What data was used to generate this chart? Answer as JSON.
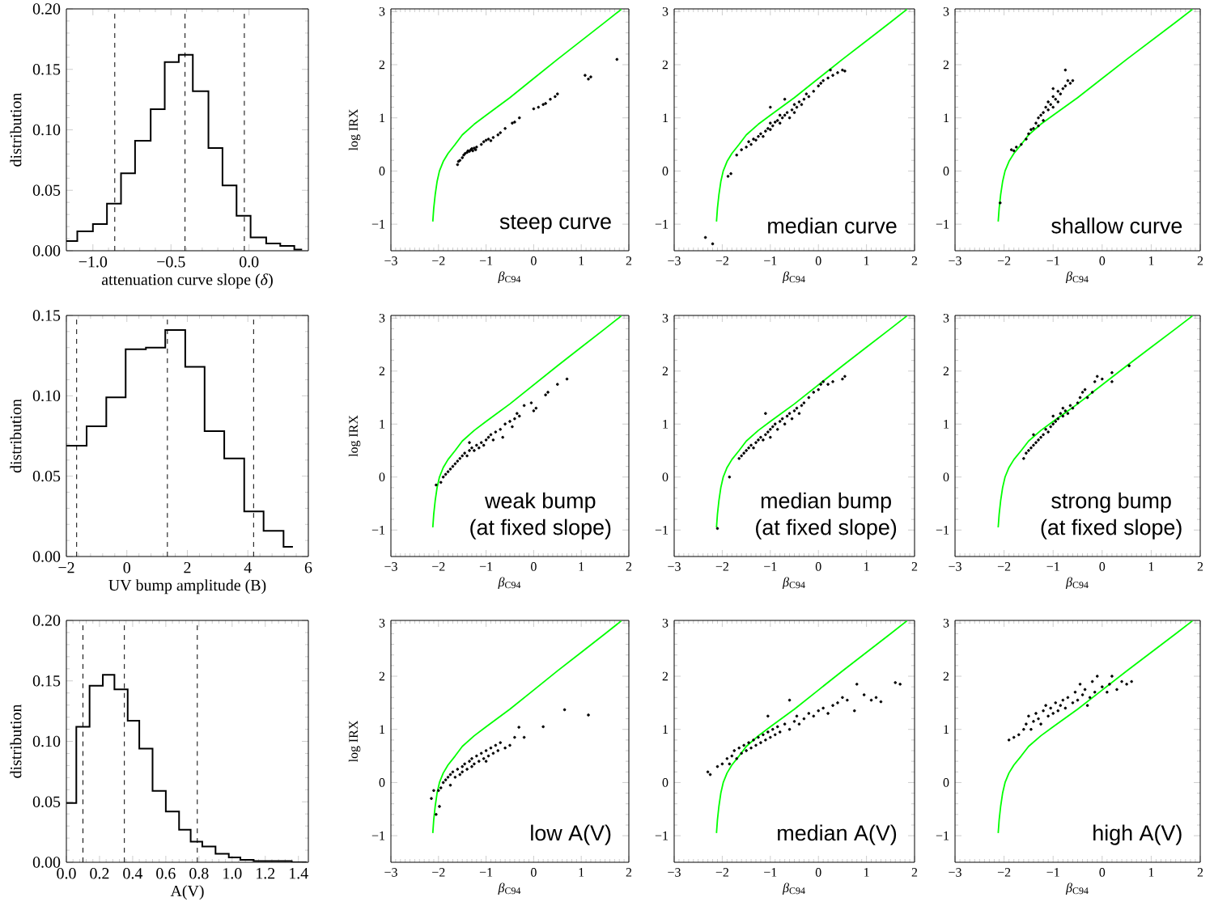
{
  "chart_data": [
    {
      "type": "histogram",
      "xlabel": "attenuation curve slope (*δ*)",
      "ylabel": "distribution",
      "color": "#000000",
      "bins": [
        -1.17,
        -1.1,
        -1.0,
        -0.91,
        -0.82,
        -0.73,
        -0.63,
        -0.54,
        -0.45,
        -0.36,
        -0.26,
        -0.17,
        -0.08,
        0.01,
        0.11,
        0.2,
        0.29,
        0.34
      ],
      "values": [
        0.008,
        0.016,
        0.022,
        0.039,
        0.064,
        0.091,
        0.117,
        0.156,
        0.162,
        0.132,
        0.085,
        0.054,
        0.029,
        0.011,
        0.006,
        0.004,
        0.001
      ],
      "ref_lines": [
        {
          "axis": "x",
          "value": -0.86,
          "line_style": "dashed"
        },
        {
          "axis": "x",
          "value": -0.41,
          "line_style": "dashed"
        },
        {
          "axis": "x",
          "value": -0.03,
          "line_style": "dashed"
        }
      ],
      "xlim": [
        -1.17,
        0.38
      ],
      "ylim": [
        0,
        0.2
      ],
      "xticks": [
        {
          "value": -1.0,
          "label": "−1.0"
        },
        {
          "value": -0.5,
          "label": "−0.5"
        },
        {
          "value": 0,
          "label": "0.0"
        }
      ],
      "yticks": [
        {
          "value": 0,
          "label": "0.00"
        },
        {
          "value": 0.05,
          "label": "0.05"
        },
        {
          "value": 0.1,
          "label": "0.10"
        },
        {
          "value": 0.15,
          "label": "0.15"
        },
        {
          "value": 0.2,
          "label": "0.20"
        }
      ]
    },
    {
      "type": "scatter",
      "xlabel": "*β*$_{C94}$",
      "ylabel": "log  IRX",
      "annotations": [
        "steep curve"
      ],
      "xlim": [
        -3,
        2
      ],
      "ylim": [
        -1.5,
        3.05
      ],
      "xticks": [
        {
          "value": -3,
          "label": "−3"
        },
        {
          "value": -2,
          "label": "−2"
        },
        {
          "value": -1,
          "label": "−1"
        },
        0,
        1,
        2
      ],
      "yticks": [
        {
          "value": -1,
          "label": "−1"
        },
        0,
        1,
        2,
        3
      ],
      "series": [
        {
          "type": "line",
          "color": "#00ff00",
          "x": [
            -2.12,
            -2.1,
            -2.07,
            -2.03,
            -1.98,
            -1.9,
            -1.8,
            -1.65,
            -1.5,
            -1.25,
            -1.0,
            -0.5,
            0,
            0.5,
            1.0,
            1.5,
            1.84
          ],
          "values": [
            -0.95,
            -0.7,
            -0.45,
            -0.2,
            0.0,
            0.18,
            0.33,
            0.5,
            0.68,
            0.88,
            1.05,
            1.38,
            1.74,
            2.1,
            2.45,
            2.8,
            3.04
          ]
        },
        {
          "type": "scatter",
          "color": "#000000",
          "marker": "circle",
          "x": [
            -1.6,
            -1.58,
            -1.55,
            -1.5,
            -1.47,
            -1.44,
            -1.4,
            -1.38,
            -1.35,
            -1.32,
            -1.3,
            -1.28,
            -1.25,
            -1.22,
            -1.2,
            -1.1,
            -1.05,
            -1.0,
            -0.95,
            -0.9,
            -0.85,
            -0.75,
            -0.7,
            -0.6,
            -0.45,
            -0.4,
            -0.3,
            0.0,
            0.1,
            0.2,
            0.25,
            0.35,
            0.45,
            0.5,
            1.08,
            1.15,
            1.2,
            1.75
          ],
          "values": [
            0.12,
            0.18,
            0.2,
            0.25,
            0.3,
            0.33,
            0.35,
            0.38,
            0.37,
            0.4,
            0.42,
            0.38,
            0.43,
            0.4,
            0.45,
            0.5,
            0.55,
            0.58,
            0.6,
            0.57,
            0.63,
            0.68,
            0.72,
            0.8,
            0.9,
            0.92,
            1.0,
            1.17,
            1.2,
            1.25,
            1.27,
            1.35,
            1.4,
            1.45,
            1.8,
            1.73,
            1.77,
            2.1
          ]
        }
      ]
    },
    {
      "type": "scatter",
      "xlabel": "*β*$_{C94}$",
      "annotations": [
        "median curve"
      ],
      "xlim": [
        -3,
        2
      ],
      "ylim": [
        -1.5,
        3.05
      ],
      "xticks": [
        {
          "value": -3,
          "label": "−3"
        },
        {
          "value": -2,
          "label": "−2"
        },
        {
          "value": -1,
          "label": "−1"
        },
        0,
        1,
        2
      ],
      "yticks": [
        {
          "value": -1,
          "label": "−1"
        },
        0,
        1,
        2,
        3
      ],
      "series": [
        {
          "type": "line",
          "color": "#00ff00",
          "x": [
            -2.12,
            -2.1,
            -2.07,
            -2.03,
            -1.98,
            -1.9,
            -1.8,
            -1.65,
            -1.5,
            -1.25,
            -1.0,
            -0.5,
            0,
            0.5,
            1.0,
            1.5,
            1.84
          ],
          "values": [
            -0.95,
            -0.7,
            -0.45,
            -0.2,
            0.0,
            0.18,
            0.33,
            0.5,
            0.68,
            0.88,
            1.05,
            1.38,
            1.74,
            2.1,
            2.45,
            2.8,
            3.04
          ]
        },
        {
          "type": "scatter",
          "color": "#000000",
          "marker": "circle",
          "x": [
            -2.35,
            -2.2,
            -1.88,
            -1.82,
            -1.7,
            -1.6,
            -1.5,
            -1.45,
            -1.4,
            -1.35,
            -1.3,
            -1.25,
            -1.2,
            -1.15,
            -1.1,
            -1.05,
            -1.0,
            -1.0,
            -0.95,
            -0.9,
            -0.85,
            -0.8,
            -0.8,
            -0.75,
            -0.7,
            -0.65,
            -0.6,
            -0.55,
            -0.5,
            -0.5,
            -0.45,
            -0.4,
            -0.35,
            -0.3,
            -0.25,
            -0.2,
            -0.1,
            0.0,
            0.05,
            0.1,
            0.2,
            0.25,
            0.3,
            0.4,
            0.5,
            0.55,
            -1.0,
            -0.7
          ],
          "values": [
            -1.25,
            -1.37,
            -0.1,
            -0.05,
            0.3,
            0.4,
            0.45,
            0.55,
            0.5,
            0.6,
            0.58,
            0.65,
            0.7,
            0.65,
            0.75,
            0.8,
            0.78,
            0.9,
            0.85,
            0.92,
            0.95,
            0.9,
            1.05,
            1.0,
            1.05,
            1.1,
            1.0,
            1.15,
            1.1,
            1.25,
            1.2,
            1.3,
            1.25,
            1.35,
            1.45,
            1.4,
            1.5,
            1.6,
            1.65,
            1.7,
            1.75,
            1.9,
            1.8,
            1.85,
            1.9,
            1.88,
            1.2,
            1.35
          ]
        }
      ]
    },
    {
      "type": "scatter",
      "xlabel": "*β*$_{C94}$",
      "annotations": [
        "shallow curve"
      ],
      "xlim": [
        -3,
        2
      ],
      "ylim": [
        -1.5,
        3.05
      ],
      "xticks": [
        {
          "value": -3,
          "label": "−3"
        },
        {
          "value": -2,
          "label": "−2"
        },
        {
          "value": -1,
          "label": "−1"
        },
        0,
        1,
        2
      ],
      "yticks": [
        {
          "value": -1,
          "label": "−1"
        },
        0,
        1,
        2,
        3
      ],
      "series": [
        {
          "type": "line",
          "color": "#00ff00",
          "x": [
            -2.12,
            -2.1,
            -2.07,
            -2.03,
            -1.98,
            -1.9,
            -1.8,
            -1.65,
            -1.5,
            -1.25,
            -1.0,
            -0.5,
            0,
            0.5,
            1.0,
            1.5,
            1.84
          ],
          "values": [
            -0.95,
            -0.7,
            -0.45,
            -0.2,
            0.0,
            0.18,
            0.33,
            0.5,
            0.68,
            0.88,
            1.05,
            1.38,
            1.74,
            2.1,
            2.45,
            2.8,
            3.04
          ]
        },
        {
          "type": "scatter",
          "color": "#000000",
          "marker": "circle",
          "x": [
            -2.08,
            -1.85,
            -1.8,
            -1.75,
            -1.65,
            -1.55,
            -1.5,
            -1.45,
            -1.4,
            -1.35,
            -1.3,
            -1.3,
            -1.25,
            -1.2,
            -1.2,
            -1.15,
            -1.1,
            -1.1,
            -1.05,
            -1.0,
            -1.0,
            -0.95,
            -0.9,
            -0.85,
            -0.8,
            -0.75,
            -0.75,
            -0.7,
            -0.65,
            -0.6,
            -1.0,
            -0.9
          ],
          "values": [
            -0.6,
            0.4,
            0.38,
            0.45,
            0.5,
            0.6,
            0.7,
            0.78,
            0.8,
            0.9,
            0.85,
            1.0,
            1.05,
            1.1,
            0.95,
            1.2,
            1.15,
            1.3,
            1.25,
            1.4,
            1.2,
            1.35,
            1.5,
            1.45,
            1.55,
            1.6,
            1.9,
            1.7,
            1.65,
            1.7,
            1.55,
            1.3
          ]
        }
      ]
    },
    {
      "type": "histogram",
      "xlabel": "UV bump amplitude (B)",
      "ylabel": "distribution",
      "color": "#000000",
      "bins": [
        -2,
        -1.33,
        -0.68,
        -0.04,
        0.63,
        1.27,
        1.93,
        2.57,
        3.22,
        3.88,
        4.52,
        5.18,
        5.49
      ],
      "values": [
        0.069,
        0.081,
        0.099,
        0.129,
        0.13,
        0.141,
        0.118,
        0.078,
        0.061,
        0.028,
        0.016,
        0.006
      ],
      "ref_lines": [
        {
          "axis": "x",
          "value": -1.66,
          "line_style": "dashed"
        },
        {
          "axis": "x",
          "value": 1.34,
          "line_style": "dashed"
        },
        {
          "axis": "x",
          "value": 4.19,
          "line_style": "dashed"
        }
      ],
      "xlim": [
        -2,
        6
      ],
      "ylim": [
        0,
        0.15
      ],
      "xticks": [
        {
          "value": -2,
          "label": "−2"
        },
        0,
        2,
        4,
        6
      ],
      "yticks": [
        {
          "value": 0,
          "label": "0.00"
        },
        {
          "value": 0.05,
          "label": "0.05"
        },
        {
          "value": 0.1,
          "label": "0.10"
        },
        {
          "value": 0.15,
          "label": "0.15"
        }
      ]
    },
    {
      "type": "scatter",
      "xlabel": "*β*$_{C94}$",
      "ylabel": "log  IRX",
      "annotations": [
        "weak bump",
        "(at fixed slope)"
      ],
      "xlim": [
        -3,
        2
      ],
      "ylim": [
        -1.5,
        3.05
      ],
      "xticks": [
        {
          "value": -3,
          "label": "−3"
        },
        {
          "value": -2,
          "label": "−2"
        },
        {
          "value": -1,
          "label": "−1"
        },
        0,
        1,
        2
      ],
      "yticks": [
        {
          "value": -1,
          "label": "−1"
        },
        0,
        1,
        2,
        3
      ],
      "series": [
        {
          "type": "line",
          "color": "#00ff00",
          "x": [
            -2.12,
            -2.1,
            -2.07,
            -2.03,
            -1.98,
            -1.9,
            -1.8,
            -1.65,
            -1.5,
            -1.25,
            -1.0,
            -0.5,
            0,
            0.5,
            1.0,
            1.5,
            1.84
          ],
          "values": [
            -0.95,
            -0.7,
            -0.45,
            -0.2,
            0.0,
            0.18,
            0.33,
            0.5,
            0.68,
            0.88,
            1.05,
            1.38,
            1.74,
            2.1,
            2.45,
            2.8,
            3.04
          ]
        },
        {
          "type": "scatter",
          "color": "#000000",
          "marker": "circle",
          "x": [
            -2.05,
            -1.95,
            -1.9,
            -1.85,
            -1.8,
            -1.75,
            -1.7,
            -1.65,
            -1.6,
            -1.55,
            -1.5,
            -1.45,
            -1.4,
            -1.35,
            -1.3,
            -1.25,
            -1.2,
            -1.15,
            -1.1,
            -1.05,
            -1.0,
            -0.95,
            -0.9,
            -0.85,
            -0.8,
            -0.7,
            -0.65,
            -0.6,
            -0.5,
            -0.45,
            -0.4,
            -0.35,
            -0.3,
            -0.2,
            -0.05,
            0.0,
            0.05,
            0.25,
            0.3,
            0.5,
            0.7,
            -1.35
          ],
          "values": [
            -0.15,
            -0.1,
            0.0,
            0.05,
            0.1,
            0.15,
            0.2,
            0.25,
            0.3,
            0.35,
            0.4,
            0.45,
            0.4,
            0.5,
            0.55,
            0.5,
            0.6,
            0.55,
            0.65,
            0.6,
            0.7,
            0.75,
            0.8,
            0.7,
            0.85,
            0.9,
            0.75,
            1.0,
            1.05,
            0.95,
            1.1,
            1.2,
            1.15,
            1.35,
            1.4,
            1.25,
            1.3,
            1.55,
            1.6,
            1.75,
            1.85,
            0.65
          ]
        }
      ]
    },
    {
      "type": "scatter",
      "xlabel": "*β*$_{C94}$",
      "annotations": [
        "median bump",
        "(at fixed slope)"
      ],
      "xlim": [
        -3,
        2
      ],
      "ylim": [
        -1.5,
        3.05
      ],
      "xticks": [
        {
          "value": -3,
          "label": "−3"
        },
        {
          "value": -2,
          "label": "−2"
        },
        {
          "value": -1,
          "label": "−1"
        },
        0,
        1,
        2
      ],
      "yticks": [
        {
          "value": -1,
          "label": "−1"
        },
        0,
        1,
        2,
        3
      ],
      "series": [
        {
          "type": "line",
          "color": "#00ff00",
          "x": [
            -2.12,
            -2.1,
            -2.07,
            -2.03,
            -1.98,
            -1.9,
            -1.8,
            -1.65,
            -1.5,
            -1.25,
            -1.0,
            -0.5,
            0,
            0.5,
            1.0,
            1.5,
            1.84
          ],
          "values": [
            -0.95,
            -0.7,
            -0.45,
            -0.2,
            0.0,
            0.18,
            0.33,
            0.5,
            0.68,
            0.88,
            1.05,
            1.38,
            1.74,
            2.1,
            2.45,
            2.8,
            3.04
          ]
        },
        {
          "type": "scatter",
          "color": "#000000",
          "marker": "circle",
          "x": [
            -2.1,
            -1.85,
            -1.65,
            -1.6,
            -1.55,
            -1.5,
            -1.45,
            -1.4,
            -1.35,
            -1.3,
            -1.25,
            -1.2,
            -1.15,
            -1.1,
            -1.05,
            -1.0,
            -1.0,
            -0.95,
            -0.9,
            -0.85,
            -0.8,
            -0.75,
            -0.7,
            -0.65,
            -0.6,
            -0.55,
            -0.5,
            -0.45,
            -0.4,
            -0.35,
            -0.3,
            -0.2,
            -0.1,
            0.0,
            0.05,
            0.1,
            0.2,
            0.3,
            0.55,
            0.5,
            -1.1
          ],
          "values": [
            -0.97,
            0.0,
            0.35,
            0.4,
            0.45,
            0.5,
            0.55,
            0.6,
            0.55,
            0.65,
            0.7,
            0.75,
            0.7,
            0.8,
            0.85,
            0.9,
            0.75,
            0.95,
            1.0,
            0.9,
            1.05,
            1.1,
            1.0,
            1.15,
            1.2,
            1.1,
            1.25,
            1.3,
            1.2,
            1.35,
            1.4,
            1.5,
            1.6,
            1.65,
            1.75,
            1.8,
            1.75,
            1.8,
            1.9,
            1.85,
            1.2
          ]
        }
      ]
    },
    {
      "type": "scatter",
      "xlabel": "*β*$_{C94}$",
      "annotations": [
        "strong bump",
        "(at fixed slope)"
      ],
      "xlim": [
        -3,
        2
      ],
      "ylim": [
        -1.5,
        3.05
      ],
      "xticks": [
        {
          "value": -3,
          "label": "−3"
        },
        {
          "value": -2,
          "label": "−2"
        },
        {
          "value": -1,
          "label": "−1"
        },
        0,
        1,
        2
      ],
      "yticks": [
        {
          "value": -1,
          "label": "−1"
        },
        0,
        1,
        2,
        3
      ],
      "series": [
        {
          "type": "line",
          "color": "#00ff00",
          "x": [
            -2.12,
            -2.1,
            -2.07,
            -2.03,
            -1.98,
            -1.9,
            -1.8,
            -1.65,
            -1.5,
            -1.25,
            -1.0,
            -0.5,
            0,
            0.5,
            1.0,
            1.5,
            1.84
          ],
          "values": [
            -0.95,
            -0.7,
            -0.45,
            -0.2,
            0.0,
            0.18,
            0.33,
            0.5,
            0.68,
            0.88,
            1.05,
            1.38,
            1.74,
            2.1,
            2.45,
            2.8,
            3.04
          ]
        },
        {
          "type": "scatter",
          "color": "#000000",
          "marker": "circle",
          "x": [
            -1.6,
            -1.55,
            -1.5,
            -1.45,
            -1.4,
            -1.4,
            -1.35,
            -1.3,
            -1.25,
            -1.2,
            -1.15,
            -1.1,
            -1.05,
            -1.0,
            -1.0,
            -0.95,
            -0.9,
            -0.85,
            -0.8,
            -0.8,
            -0.75,
            -0.7,
            -0.65,
            -0.6,
            -0.5,
            -0.45,
            -0.4,
            -0.35,
            -0.3,
            -0.2,
            -0.15,
            -0.1,
            0.0,
            0.2,
            0.2,
            0.55
          ],
          "values": [
            0.35,
            0.45,
            0.5,
            0.55,
            0.6,
            0.8,
            0.65,
            0.7,
            0.75,
            0.8,
            0.9,
            0.85,
            0.95,
            1.0,
            1.15,
            1.05,
            1.1,
            1.2,
            1.15,
            1.3,
            1.25,
            1.2,
            1.35,
            1.3,
            1.4,
            1.5,
            1.6,
            1.65,
            1.5,
            1.6,
            1.8,
            1.9,
            1.85,
            1.8,
            1.97,
            2.1
          ]
        }
      ]
    },
    {
      "type": "histogram",
      "xlabel": "A(V)",
      "ylabel": "distribution",
      "color": "#000000",
      "bins": [
        0,
        0.06,
        0.14,
        0.22,
        0.29,
        0.37,
        0.44,
        0.52,
        0.6,
        0.68,
        0.75,
        0.82,
        0.9,
        0.98,
        1.05,
        1.13,
        1.21,
        1.29,
        1.36,
        1.45
      ],
      "values": [
        0.049,
        0.112,
        0.146,
        0.155,
        0.143,
        0.117,
        0.094,
        0.059,
        0.042,
        0.027,
        0.017,
        0.013,
        0.007,
        0.004,
        0.002,
        0.001,
        0.001,
        0.001,
        0.0
      ],
      "ref_lines": [
        {
          "axis": "x",
          "value": 0.1,
          "line_style": "dashed"
        },
        {
          "axis": "x",
          "value": 0.35,
          "line_style": "dashed"
        },
        {
          "axis": "x",
          "value": 0.79,
          "line_style": "dashed"
        }
      ],
      "xlim": [
        0,
        1.46
      ],
      "ylim": [
        0,
        0.2
      ],
      "xticks": [
        {
          "value": 0,
          "label": "0.0"
        },
        {
          "value": 0.2,
          "label": "0.2"
        },
        {
          "value": 0.4,
          "label": "0.4"
        },
        {
          "value": 0.6,
          "label": "0.6"
        },
        {
          "value": 0.8,
          "label": "0.8"
        },
        {
          "value": 1.0,
          "label": "1.0"
        },
        {
          "value": 1.2,
          "label": "1.2"
        },
        {
          "value": 1.4,
          "label": "1.4"
        }
      ],
      "yticks": [
        {
          "value": 0,
          "label": "0.00"
        },
        {
          "value": 0.05,
          "label": "0.05"
        },
        {
          "value": 0.1,
          "label": "0.10"
        },
        {
          "value": 0.15,
          "label": "0.15"
        },
        {
          "value": 0.2,
          "label": "0.20"
        }
      ]
    },
    {
      "type": "scatter",
      "xlabel": "*β*$_{C94}$",
      "ylabel": "log  IRX",
      "annotations": [
        "low A(V)"
      ],
      "xlim": [
        -3,
        2
      ],
      "ylim": [
        -1.5,
        3.05
      ],
      "xticks": [
        {
          "value": -3,
          "label": "−3"
        },
        {
          "value": -2,
          "label": "−2"
        },
        {
          "value": -1,
          "label": "−1"
        },
        0,
        1,
        2
      ],
      "yticks": [
        {
          "value": -1,
          "label": "−1"
        },
        0,
        1,
        2,
        3
      ],
      "series": [
        {
          "type": "line",
          "color": "#00ff00",
          "x": [
            -2.12,
            -2.1,
            -2.07,
            -2.03,
            -1.98,
            -1.9,
            -1.8,
            -1.65,
            -1.5,
            -1.25,
            -1.0,
            -0.5,
            0,
            0.5,
            1.0,
            1.5,
            1.84
          ],
          "values": [
            -0.95,
            -0.7,
            -0.45,
            -0.2,
            0.0,
            0.18,
            0.33,
            0.5,
            0.68,
            0.88,
            1.05,
            1.38,
            1.74,
            2.1,
            2.45,
            2.8,
            3.04
          ]
        },
        {
          "type": "scatter",
          "color": "#000000",
          "marker": "circle",
          "x": [
            -2.15,
            -2.05,
            -1.98,
            -2.1,
            -2.0,
            -1.95,
            -1.9,
            -1.85,
            -1.8,
            -1.75,
            -1.75,
            -1.7,
            -1.65,
            -1.6,
            -1.55,
            -1.5,
            -1.5,
            -1.45,
            -1.4,
            -1.35,
            -1.3,
            -1.3,
            -1.25,
            -1.2,
            -1.15,
            -1.1,
            -1.05,
            -1.0,
            -1.0,
            -0.95,
            -0.9,
            -0.85,
            -0.8,
            -0.75,
            -0.7,
            -0.6,
            -0.5,
            -0.4,
            -0.31,
            -0.2,
            0.2,
            0.65,
            1.15
          ],
          "values": [
            -0.3,
            -0.6,
            -0.45,
            -0.15,
            -0.15,
            -0.1,
            0.0,
            0.05,
            0.1,
            0.15,
            -0.05,
            0.2,
            0.1,
            0.25,
            0.15,
            0.3,
            0.2,
            0.35,
            0.25,
            0.4,
            0.3,
            0.45,
            0.35,
            0.5,
            0.4,
            0.55,
            0.45,
            0.6,
            0.4,
            0.5,
            0.65,
            0.55,
            0.7,
            0.6,
            0.75,
            0.65,
            0.7,
            0.85,
            1.04,
            0.85,
            1.05,
            1.37,
            1.27
          ]
        }
      ]
    },
    {
      "type": "scatter",
      "xlabel": "*β*$_{C94}$",
      "annotations": [
        "median A(V)"
      ],
      "xlim": [
        -3,
        2
      ],
      "ylim": [
        -1.5,
        3.05
      ],
      "xticks": [
        {
          "value": -3,
          "label": "−3"
        },
        {
          "value": -2,
          "label": "−2"
        },
        {
          "value": -1,
          "label": "−1"
        },
        0,
        1,
        2
      ],
      "yticks": [
        {
          "value": -1,
          "label": "−1"
        },
        0,
        1,
        2,
        3
      ],
      "series": [
        {
          "type": "line",
          "color": "#00ff00",
          "x": [
            -2.12,
            -2.1,
            -2.07,
            -2.03,
            -1.98,
            -1.9,
            -1.8,
            -1.65,
            -1.5,
            -1.25,
            -1.0,
            -0.5,
            0,
            0.5,
            1.0,
            1.5,
            1.84
          ],
          "values": [
            -0.95,
            -0.7,
            -0.45,
            -0.2,
            0.0,
            0.18,
            0.33,
            0.5,
            0.68,
            0.88,
            1.05,
            1.38,
            1.74,
            2.1,
            2.45,
            2.8,
            3.04
          ]
        },
        {
          "type": "scatter",
          "color": "#000000",
          "marker": "circle",
          "x": [
            -2.3,
            -2.25,
            -2.1,
            -2.0,
            -1.9,
            -1.85,
            -1.8,
            -1.75,
            -1.7,
            -1.65,
            -1.6,
            -1.55,
            -1.5,
            -1.45,
            -1.4,
            -1.35,
            -1.3,
            -1.25,
            -1.2,
            -1.15,
            -1.1,
            -1.05,
            -1.0,
            -0.95,
            -0.9,
            -0.85,
            -0.8,
            -0.7,
            -0.6,
            -0.5,
            -0.45,
            -0.4,
            -0.3,
            -0.2,
            -0.1,
            0.0,
            0.1,
            0.2,
            0.3,
            0.4,
            0.5,
            0.6,
            0.75,
            0.8,
            0.95,
            1.1,
            1.2,
            1.3,
            1.6,
            1.7,
            -1.05,
            -0.6
          ],
          "values": [
            0.2,
            0.15,
            0.3,
            0.35,
            0.45,
            0.35,
            0.5,
            0.6,
            0.45,
            0.65,
            0.55,
            0.7,
            0.6,
            0.75,
            0.65,
            0.8,
            0.7,
            0.85,
            0.75,
            0.9,
            0.8,
            0.95,
            0.85,
            1.0,
            0.9,
            1.05,
            0.95,
            1.1,
            1.0,
            1.15,
            1.25,
            1.1,
            1.2,
            1.3,
            1.25,
            1.35,
            1.4,
            1.3,
            1.45,
            1.5,
            1.6,
            1.55,
            1.35,
            1.85,
            1.65,
            1.55,
            1.6,
            1.52,
            1.88,
            1.85,
            1.25,
            1.55
          ]
        }
      ]
    },
    {
      "type": "scatter",
      "xlabel": "*β*$_{C94}$",
      "annotations": [
        "high A(V)"
      ],
      "xlim": [
        -3,
        2
      ],
      "ylim": [
        -1.5,
        3.05
      ],
      "xticks": [
        {
          "value": -3,
          "label": "−3"
        },
        {
          "value": -2,
          "label": "−2"
        },
        {
          "value": -1,
          "label": "−1"
        },
        0,
        1,
        2
      ],
      "yticks": [
        {
          "value": -1,
          "label": "−1"
        },
        0,
        1,
        2,
        3
      ],
      "series": [
        {
          "type": "line",
          "color": "#00ff00",
          "x": [
            -2.12,
            -2.1,
            -2.07,
            -2.03,
            -1.98,
            -1.9,
            -1.8,
            -1.65,
            -1.5,
            -1.25,
            -1.0,
            -0.5,
            0,
            0.5,
            1.0,
            1.5,
            1.84
          ],
          "values": [
            -0.95,
            -0.7,
            -0.45,
            -0.2,
            0.0,
            0.18,
            0.33,
            0.5,
            0.68,
            0.88,
            1.05,
            1.38,
            1.74,
            2.1,
            2.45,
            2.8,
            3.04
          ]
        },
        {
          "type": "scatter",
          "color": "#000000",
          "marker": "circle",
          "x": [
            -1.9,
            -1.8,
            -1.7,
            -1.6,
            -1.55,
            -1.5,
            -1.45,
            -1.4,
            -1.35,
            -1.3,
            -1.25,
            -1.2,
            -1.15,
            -1.1,
            -1.05,
            -1.0,
            -0.95,
            -0.9,
            -0.85,
            -0.8,
            -0.75,
            -0.7,
            -0.6,
            -0.55,
            -0.5,
            -0.45,
            -0.4,
            -0.35,
            -0.3,
            -0.25,
            -0.2,
            -0.15,
            -0.1,
            0.0,
            0.1,
            0.15,
            0.2,
            0.3,
            0.4,
            0.5,
            0.6
          ],
          "values": [
            0.8,
            0.85,
            0.9,
            1.0,
            1.1,
            1.25,
            1.0,
            1.15,
            1.3,
            1.2,
            1.1,
            1.35,
            1.45,
            1.25,
            1.4,
            1.3,
            1.5,
            1.35,
            1.45,
            1.55,
            1.4,
            1.6,
            1.5,
            1.7,
            1.55,
            1.85,
            1.65,
            1.75,
            1.45,
            1.6,
            1.9,
            1.7,
            2.0,
            1.8,
            1.7,
            1.85,
            2.0,
            1.75,
            1.9,
            1.85,
            1.9
          ]
        }
      ]
    }
  ]
}
